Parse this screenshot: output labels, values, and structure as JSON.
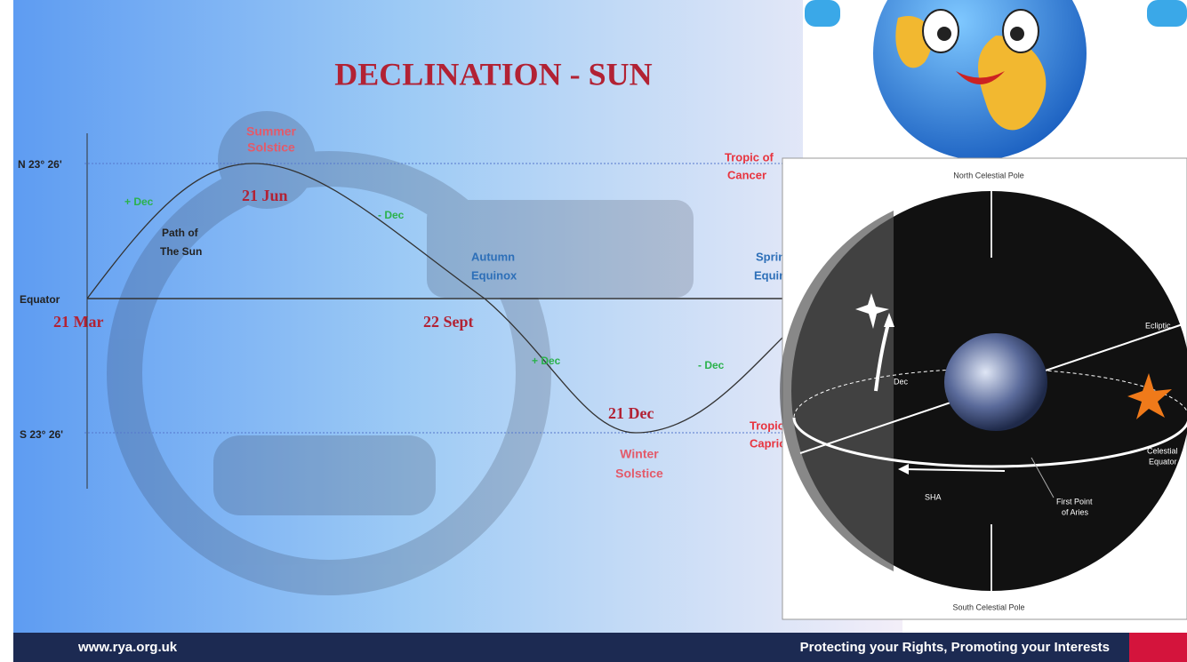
{
  "slide": {
    "title": "DECLINATION - SUN",
    "axis": {
      "north": "N 23° 26'",
      "equator": "Equator",
      "south": "S 23° 26'"
    },
    "dates": {
      "mar": "21 Mar",
      "jun": "21 Jun",
      "sept": "22 Sept",
      "dec": "21 Dec"
    },
    "summer_solstice": [
      "Summer",
      "Solstice"
    ],
    "winter_solstice": [
      "Winter",
      "Solstice"
    ],
    "path_of_sun": [
      "Path of",
      "The Sun"
    ],
    "autumn_equinox": [
      "Autumn",
      "Equinox"
    ],
    "spring_equinox": [
      "Spring",
      "Equinox"
    ],
    "tropic_cancer": [
      "Tropic of",
      "Cancer"
    ],
    "tropic_capricorn": [
      "Tropic of",
      "Capricorn"
    ],
    "dec_labels": [
      "+ Dec",
      "- Dec",
      "+ Dec",
      "- Dec"
    ]
  },
  "celestial": {
    "north_pole": "North Celestial Pole",
    "south_pole": "South Celestial Pole",
    "ecliptic": "Ecliptic",
    "dec": "Dec",
    "equator": [
      "Celestial",
      "Equator"
    ],
    "sha": "SHA",
    "aries": [
      "First Point",
      "of Aries"
    ]
  },
  "footer": {
    "url": "www.rya.org.uk",
    "slogan": "Protecting your Rights, Promoting your Interests"
  }
}
